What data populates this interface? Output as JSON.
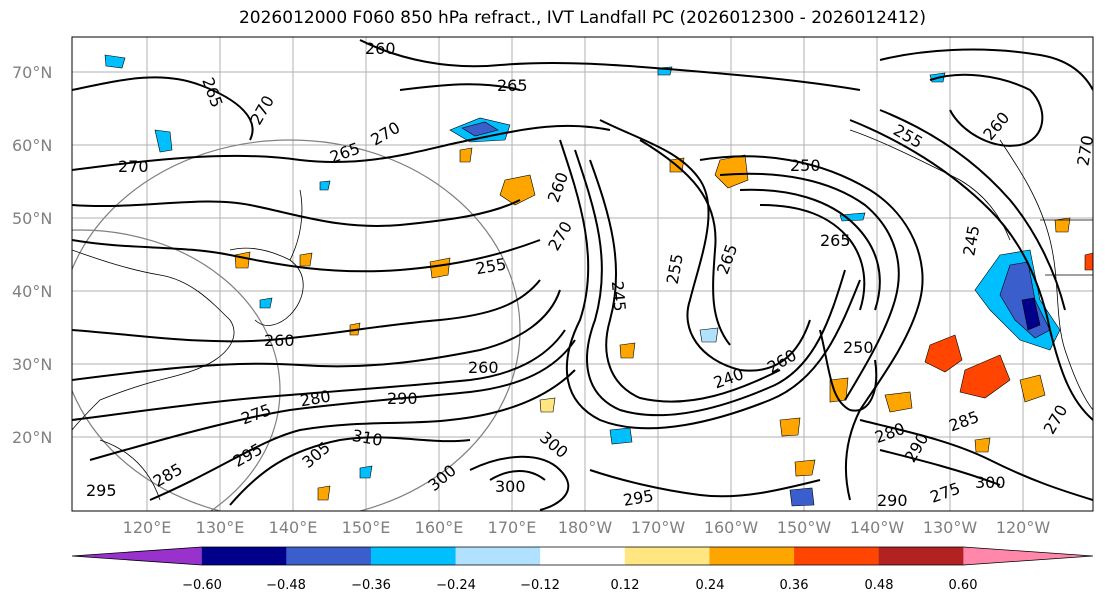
{
  "title": "2026012000 F060 850 hPa refract., IVT Landfall PC (2026012300 - 2026012412)",
  "lat_labels": [
    "70°N",
    "60°N",
    "50°N",
    "40°N",
    "30°N",
    "20°N"
  ],
  "lon_labels": [
    "120°E",
    "130°E",
    "140°E",
    "150°E",
    "160°E",
    "170°E",
    "180°W",
    "170°W",
    "160°W",
    "150°W",
    "140°W",
    "130°W",
    "120°W"
  ],
  "contour_labels": [
    "260",
    "265",
    "265",
    "270",
    "270",
    "265",
    "270",
    "255",
    "260",
    "270",
    "265",
    "260",
    "250",
    "255",
    "265",
    "245",
    "255",
    "270",
    "260",
    "240",
    "245",
    "250",
    "260",
    "275",
    "280",
    "290",
    "300",
    "310",
    "305",
    "295",
    "285",
    "295",
    "300",
    "300",
    "300",
    "290",
    "295",
    "285",
    "270",
    "290",
    "275",
    "260",
    "280"
  ],
  "colorbar": {
    "ticks": [
      "−0.60",
      "−0.48",
      "−0.36",
      "−0.24",
      "−0.12",
      "0.12",
      "0.24",
      "0.36",
      "0.48",
      "0.60"
    ],
    "colors": [
      "#9932cc",
      "#00008b",
      "#3a5fcd",
      "#00bfff",
      "#b0e2ff",
      "#ffffff",
      "#ffe680",
      "#ffa500",
      "#ff4500",
      "#b22222",
      "#ff88aa"
    ]
  },
  "colors": {
    "land_line": "#000000",
    "grid": "#b0b0b0",
    "axis_label": "#808080"
  }
}
